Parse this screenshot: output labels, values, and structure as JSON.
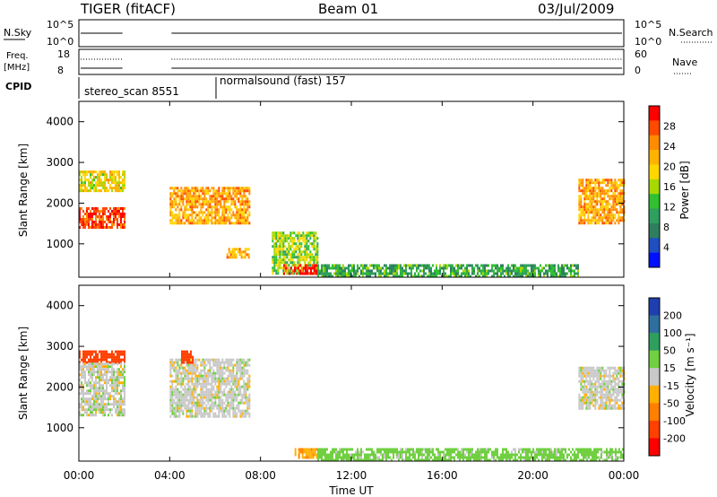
{
  "header": {
    "radar": "TIGER (fitACF)",
    "beam": "Beam 01",
    "date": "03/Jul/2009"
  },
  "params": {
    "nsky_label": "N.Sky",
    "nsky_ticks": [
      "10^5",
      "10^0"
    ],
    "nsearch_label": "N.Search",
    "nsearch_ticks": [
      "10^5",
      "10^0"
    ],
    "freq_label_1": "Freq.",
    "freq_label_2": "[MHz]",
    "freq_ticks": [
      "18",
      "8"
    ],
    "nave_label": "Nave",
    "nave_ticks": [
      "60",
      "0"
    ],
    "cpid_label": "CPID",
    "cpid_1": "stereo_scan 8551",
    "cpid_2": "normalsound (fast) 157"
  },
  "power_panel": {
    "ylabel": "Slant Range [km]",
    "yticks": [
      "4000",
      "3000",
      "2000",
      "1000"
    ],
    "cbar_label": "Power [dB]",
    "cbar_ticks": [
      "28",
      "24",
      "20",
      "16",
      "12",
      "8",
      "4"
    ],
    "cbar_colors": [
      "#ff0000",
      "#ff4a00",
      "#ff8c00",
      "#ffb300",
      "#ffd700",
      "#a6d900",
      "#30c030",
      "#2f9f5f",
      "#2f7f5f",
      "#1f4fc0",
      "#0010ff"
    ]
  },
  "velocity_panel": {
    "ylabel": "Slant Range [km]",
    "yticks": [
      "4000",
      "3000",
      "2000",
      "1000"
    ],
    "cbar_label": "Velocity [m s⁻¹]",
    "cbar_ticks": [
      "200",
      "100",
      "50",
      "15",
      "-15",
      "-50",
      "-100",
      "-200"
    ],
    "cbar_colors": [
      "#1f3fb0",
      "#2f6f9f",
      "#2f9f5f",
      "#70d040",
      "#c8c8c8",
      "#ffb000",
      "#ff8000",
      "#ff4000",
      "#ff0000"
    ]
  },
  "xaxis": {
    "label": "Time UT",
    "ticks": [
      "00:00",
      "04:00",
      "08:00",
      "12:00",
      "16:00",
      "20:00",
      "00:00"
    ]
  },
  "chart_data": [
    {
      "type": "heatmap",
      "title": "Power",
      "xlabel": "Time UT",
      "ylabel": "Slant Range [km]",
      "xlim_hours": [
        0,
        24
      ],
      "ylim": [
        180,
        4500
      ],
      "colorbar_range_dB": [
        0,
        30
      ],
      "data_gaps_hours": [
        [
          2.0,
          4.0
        ]
      ],
      "regions": [
        {
          "t": [
            0.0,
            2.0
          ],
          "range": [
            1400,
            1900
          ],
          "dB": 28
        },
        {
          "t": [
            0.0,
            2.0
          ],
          "range": [
            2300,
            2800
          ],
          "dB": 18
        },
        {
          "t": [
            4.0,
            7.5
          ],
          "range": [
            1500,
            2400
          ],
          "dB": 22
        },
        {
          "t": [
            6.5,
            7.5
          ],
          "range": [
            700,
            900
          ],
          "dB": 22
        },
        {
          "t": [
            8.5,
            10.5
          ],
          "range": [
            300,
            1300
          ],
          "dB": 14
        },
        {
          "t": [
            9.0,
            10.5
          ],
          "range": [
            250,
            500
          ],
          "dB": 28
        },
        {
          "t": [
            10.5,
            22.0
          ],
          "range": [
            200,
            500
          ],
          "dB": 10
        },
        {
          "t": [
            22.0,
            24.0
          ],
          "range": [
            1500,
            2600
          ],
          "dB": 22
        }
      ]
    },
    {
      "type": "heatmap",
      "title": "Velocity",
      "xlabel": "Time UT",
      "ylabel": "Slant Range [km]",
      "xlim_hours": [
        0,
        24
      ],
      "ylim": [
        180,
        4500
      ],
      "colorbar_range_ms": [
        -200,
        200
      ],
      "data_gaps_hours": [
        [
          2.0,
          4.0
        ]
      ],
      "regions": [
        {
          "t": [
            0.0,
            2.0
          ],
          "range": [
            2600,
            2900
          ],
          "v": -150
        },
        {
          "t": [
            0.0,
            2.0
          ],
          "range": [
            1300,
            2600
          ],
          "v": 0
        },
        {
          "t": [
            4.0,
            7.5
          ],
          "range": [
            1300,
            2700
          ],
          "v": 0
        },
        {
          "t": [
            4.5,
            5.0
          ],
          "range": [
            2600,
            2900
          ],
          "v": -150
        },
        {
          "t": [
            9.5,
            10.5
          ],
          "range": [
            250,
            500
          ],
          "v": -40
        },
        {
          "t": [
            10.5,
            24.0
          ],
          "range": [
            200,
            500
          ],
          "v": 30
        },
        {
          "t": [
            22.0,
            24.0
          ],
          "range": [
            1500,
            2500
          ],
          "v": 0
        }
      ]
    }
  ]
}
